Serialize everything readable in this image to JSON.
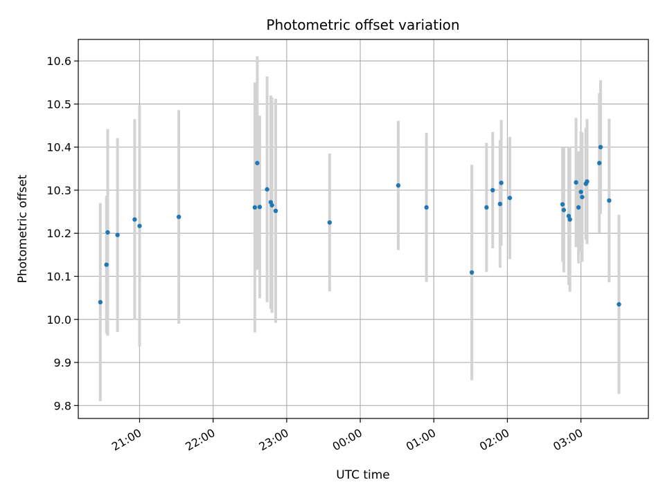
{
  "chart_data": {
    "type": "scatter",
    "title": "Photometric offset variation",
    "xlabel": "UTC time",
    "ylabel": "Photometric offset",
    "x_tick_labels": [
      "21:00",
      "22:00",
      "23:00",
      "00:00",
      "01:00",
      "02:00",
      "03:00"
    ],
    "y_tick_labels": [
      "9.8",
      "9.9",
      "10.0",
      "10.1",
      "10.2",
      "10.3",
      "10.4",
      "10.5",
      "10.6"
    ],
    "y_ticks": [
      9.8,
      9.9,
      10.0,
      10.1,
      10.2,
      10.3,
      10.4,
      10.5,
      10.6
    ],
    "xlim": [
      "20:10",
      "27:55"
    ],
    "ylim": [
      9.77,
      10.65
    ],
    "grid": true,
    "colors": {
      "point": "#1f77b4",
      "errorbar": "#d3d3d3",
      "grid": "#b0b0b0"
    },
    "points": [
      {
        "t": "20:28",
        "y": 10.04,
        "err": 0.23
      },
      {
        "t": "20:33",
        "y": 10.127,
        "err": 0.16
      },
      {
        "t": "20:34",
        "y": 10.202,
        "err": 0.24
      },
      {
        "t": "20:42",
        "y": 10.196,
        "err": 0.225
      },
      {
        "t": "20:56",
        "y": 10.232,
        "err": 0.233
      },
      {
        "t": "21:00",
        "y": 10.217,
        "err": 0.28
      },
      {
        "t": "21:32",
        "y": 10.238,
        "err": 0.248
      },
      {
        "t": "22:34",
        "y": 10.26,
        "err": 0.29
      },
      {
        "t": "22:36",
        "y": 10.363,
        "err": 0.248
      },
      {
        "t": "22:38",
        "y": 10.261,
        "err": 0.212
      },
      {
        "t": "22:44",
        "y": 10.302,
        "err": 0.262
      },
      {
        "t": "22:47",
        "y": 10.272,
        "err": 0.248
      },
      {
        "t": "22:48",
        "y": 10.265,
        "err": 0.25
      },
      {
        "t": "22:51",
        "y": 10.252,
        "err": 0.26
      },
      {
        "t": "23:35",
        "y": 10.225,
        "err": 0.16
      },
      {
        "t": "24:31",
        "y": 10.311,
        "err": 0.15
      },
      {
        "t": "24:54",
        "y": 10.26,
        "err": 0.173
      },
      {
        "t": "25:31",
        "y": 10.109,
        "err": 0.25
      },
      {
        "t": "25:43",
        "y": 10.26,
        "err": 0.15
      },
      {
        "t": "25:48",
        "y": 10.3,
        "err": 0.135
      },
      {
        "t": "25:54",
        "y": 10.268,
        "err": 0.148
      },
      {
        "t": "25:55",
        "y": 10.317,
        "err": 0.146
      },
      {
        "t": "26:02",
        "y": 10.282,
        "err": 0.142
      },
      {
        "t": "26:45",
        "y": 10.267,
        "err": 0.133
      },
      {
        "t": "26:46",
        "y": 10.254,
        "err": 0.145
      },
      {
        "t": "26:50",
        "y": 10.24,
        "err": 0.16
      },
      {
        "t": "26:51",
        "y": 10.232,
        "err": 0.168
      },
      {
        "t": "26:56",
        "y": 10.318,
        "err": 0.15
      },
      {
        "t": "26:58",
        "y": 10.26,
        "err": 0.13
      },
      {
        "t": "27:00",
        "y": 10.296,
        "err": 0.14
      },
      {
        "t": "27:01",
        "y": 10.284,
        "err": 0.15
      },
      {
        "t": "27:04",
        "y": 10.315,
        "err": 0.13
      },
      {
        "t": "27:05",
        "y": 10.32,
        "err": 0.145
      },
      {
        "t": "27:15",
        "y": 10.363,
        "err": 0.162
      },
      {
        "t": "27:16",
        "y": 10.4,
        "err": 0.155
      },
      {
        "t": "27:23",
        "y": 10.276,
        "err": 0.19
      },
      {
        "t": "27:31",
        "y": 10.035,
        "err": 0.208
      }
    ]
  }
}
